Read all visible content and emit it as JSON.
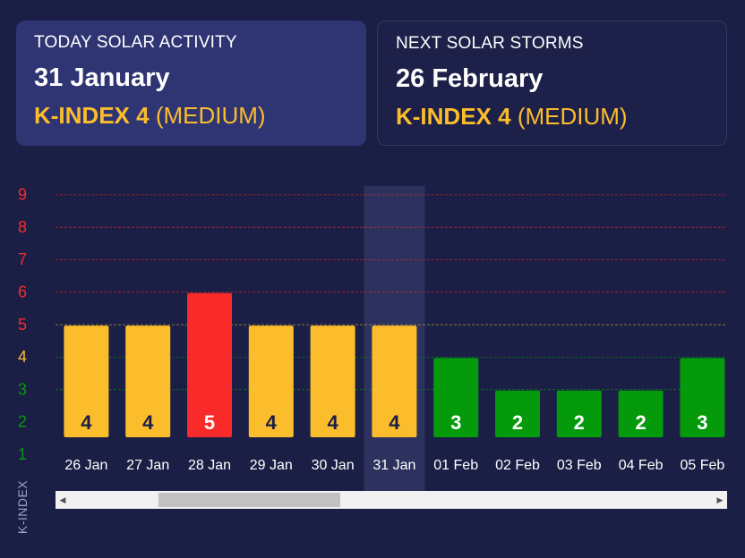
{
  "today": {
    "caption": "TODAY SOLAR ACTIVITY",
    "date": "31 January",
    "kindex_label": "K-INDEX 4",
    "level": "(MEDIUM)"
  },
  "next": {
    "caption": "NEXT SOLAR STORMS",
    "date": "26 February",
    "kindex_label": "K-INDEX 4",
    "level": "(MEDIUM)"
  },
  "colors": {
    "medium": "#fcbd2c",
    "high": "#f92a2a",
    "low": "#049a0c",
    "highlight": "#2e3360"
  },
  "chart_data": {
    "type": "bar",
    "ylabel": "K-INDEX",
    "ylim": [
      1,
      9
    ],
    "yticks": [
      1,
      2,
      3,
      4,
      5,
      6,
      7,
      8,
      9
    ],
    "categories": [
      "26 Jan",
      "27 Jan",
      "28 Jan",
      "29 Jan",
      "30 Jan",
      "31 Jan",
      "01 Feb",
      "02 Feb",
      "03 Feb",
      "04 Feb",
      "05 Feb"
    ],
    "values": [
      4,
      4,
      5,
      4,
      4,
      4,
      3,
      2,
      2,
      2,
      3
    ],
    "highlighted_category": "31 Jan",
    "grid": true
  },
  "scrollbar": {
    "left_arrow": "◀",
    "right_arrow": "▶"
  }
}
